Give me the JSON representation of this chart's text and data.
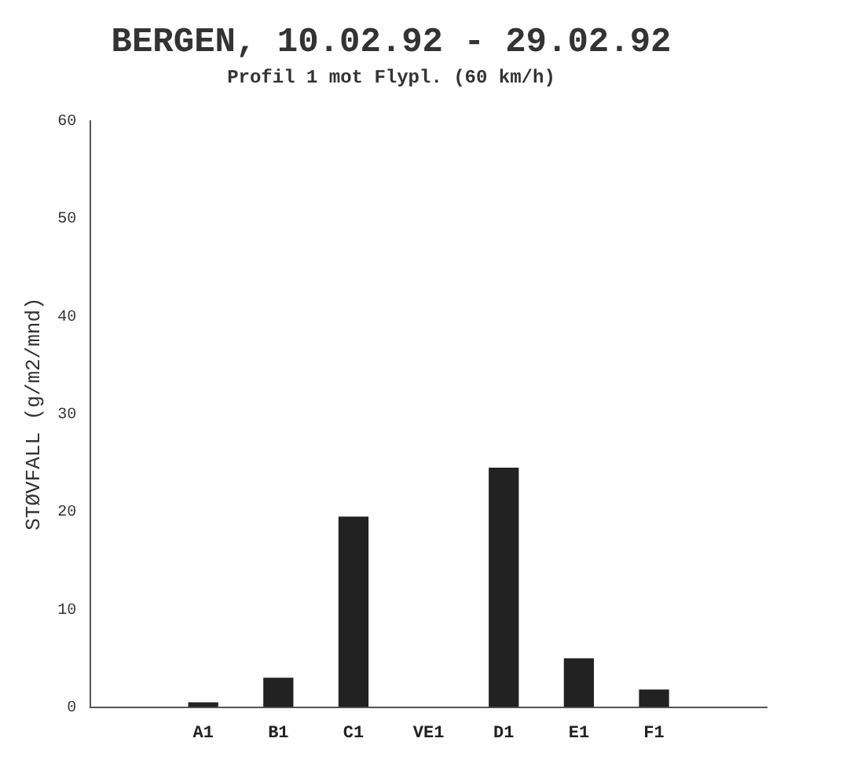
{
  "chart_data": {
    "type": "bar",
    "title": "BERGEN, 10.02.92 - 29.02.92",
    "subtitle": "Profil 1 mot Flypl. (60 km/h)",
    "ylabel": "STØVFALL (g/m2/mnd)",
    "categories": [
      null,
      "A1",
      "B1",
      "C1",
      "VE1",
      "D1",
      "E1",
      "F1",
      null
    ],
    "values": [
      null,
      0.5,
      3,
      19.5,
      null,
      24.5,
      5,
      1.8,
      null
    ],
    "color": "#222222",
    "ylim": [
      0,
      60
    ],
    "yticks": [
      0,
      10,
      20,
      30,
      40,
      50,
      60
    ],
    "grid": false,
    "legend": false
  }
}
